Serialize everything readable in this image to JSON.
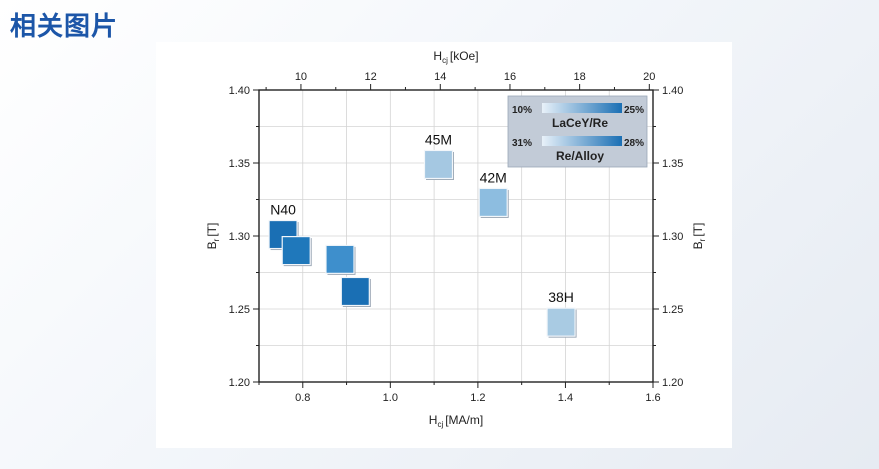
{
  "page": {
    "title": "相关图片"
  },
  "chart_data": {
    "type": "scatter",
    "title": "",
    "x_bottom": {
      "label": "H",
      "label_sub": "cj",
      "label_unit": "[MA/m]",
      "range": [
        0.7,
        1.6
      ],
      "ticks": [
        "0.8",
        "1.0",
        "1.2",
        "1.4",
        "1.6"
      ]
    },
    "x_top": {
      "label": "H",
      "label_sub": "cj",
      "label_unit": "[kOe]",
      "range": [
        8.796,
        20.106
      ],
      "ticks": [
        "10",
        "12",
        "14",
        "16",
        "18",
        "20"
      ]
    },
    "y_left": {
      "label": "B",
      "label_sub": "r",
      "label_unit": "[T]",
      "range": [
        1.2,
        1.4
      ],
      "ticks": [
        "1.20",
        "1.25",
        "1.30",
        "1.35",
        "1.40"
      ]
    },
    "y_right": {
      "label": "B",
      "label_sub": "r",
      "label_unit": "[T]",
      "ticks": [
        "1.20",
        "1.25",
        "1.30",
        "1.35",
        "1.40"
      ]
    },
    "grid": true,
    "points": [
      {
        "label": "N40",
        "x": 0.755,
        "y": 1.301,
        "color": "#1a6fb4"
      },
      {
        "label": "",
        "x": 0.785,
        "y": 1.29,
        "color": "#1f78bb"
      },
      {
        "label": "",
        "x": 0.885,
        "y": 1.284,
        "color": "#3e8fcc"
      },
      {
        "label": "",
        "x": 0.92,
        "y": 1.262,
        "color": "#1a6fb4"
      },
      {
        "label": "45M",
        "x": 1.11,
        "y": 1.349,
        "color": "#a5c8e2"
      },
      {
        "label": "42M",
        "x": 1.235,
        "y": 1.323,
        "color": "#8dbde0"
      },
      {
        "label": "38H",
        "x": 1.39,
        "y": 1.241,
        "color": "#a9cbe3"
      }
    ],
    "legend": {
      "placement": "top-right",
      "items": [
        {
          "name": "LaCeY/Re",
          "min_label": "10%",
          "max_label": "25%",
          "color_light": "#e8f1f9",
          "color_dark": "#1a6fb4"
        },
        {
          "name": "Re/Alloy",
          "min_label": "31%",
          "max_label": "28%",
          "color_light": "#e8f1f9",
          "color_dark": "#1a6fb4"
        }
      ]
    }
  }
}
